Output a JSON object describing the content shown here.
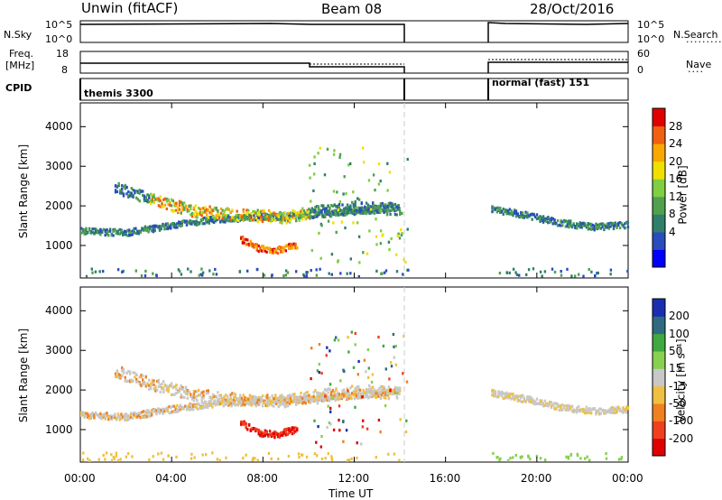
{
  "header": {
    "radar": "Unwin (fitACF)",
    "beam": "Beam 08",
    "date": "28/Oct/2016"
  },
  "sky_panel": {
    "ylabel": "N.Sky",
    "ticks_left": [
      "10^5",
      "10^0"
    ],
    "ticks_right": [
      "10^5",
      "10^0"
    ],
    "right_label": "N.Search"
  },
  "freq_panel": {
    "ylabel_line1": "Freq.",
    "ylabel_line2": "[MHz]",
    "ticks_left": [
      "18",
      "8"
    ],
    "ticks_right": [
      "60",
      "0"
    ],
    "right_label": "Nave"
  },
  "cpid_panel": {
    "label": "CPID",
    "segments": [
      {
        "name": "themis 3300"
      },
      {
        "name": "normal (fast) 151"
      }
    ]
  },
  "power_panel": {
    "ylabel": "Slant Range [km]",
    "yticks": [
      "4000",
      "3000",
      "2000",
      "1000"
    ],
    "colorbar_label": "Power [dB]",
    "colorbar_ticks": [
      "28",
      "24",
      "20",
      "16",
      "12",
      "8",
      "4"
    ],
    "colors": [
      "#0000ff",
      "#2a4dbd",
      "#2f7f6a",
      "#50a050",
      "#7fcf40",
      "#f0e000",
      "#f8a800",
      "#f06010",
      "#e00000"
    ]
  },
  "velocity_panel": {
    "ylabel": "Slant Range [km]",
    "yticks": [
      "4000",
      "3000",
      "2000",
      "1000"
    ],
    "colorbar_label": "Velocity [m s⁻¹]",
    "colorbar_ticks": [
      "200",
      "100",
      "50",
      "15",
      "-15",
      "-50",
      "-100",
      "-200"
    ],
    "colors": [
      "#1a2fb0",
      "#2e6b80",
      "#3fa840",
      "#88d050",
      "#c8c8c8",
      "#f0c040",
      "#f08020",
      "#f04020",
      "#e00000"
    ]
  },
  "xaxis": {
    "title": "Time UT",
    "ticks": [
      "00:00",
      "04:00",
      "08:00",
      "12:00",
      "16:00",
      "20:00",
      "00:00"
    ]
  },
  "chart_data": {
    "type": "heatmap",
    "x_unit": "hours UT",
    "xlim": [
      0,
      24
    ],
    "ylim_km": [
      180,
      4600
    ],
    "data_gap_hours": [
      14.33,
      18.0
    ],
    "cpid": [
      {
        "name": "themis 3300",
        "start": 0,
        "end": 14.33
      },
      {
        "name": "normal (fast) 151",
        "start": 18.0,
        "end": 24
      }
    ],
    "frequency_MHz": [
      {
        "start": 0,
        "end": 10,
        "value": 10.8
      },
      {
        "start": 10,
        "end": 14.33,
        "value": 10.0
      },
      {
        "start": 18,
        "end": 24,
        "value": 10.9
      }
    ],
    "echo_bands": [
      {
        "name": "ground scatter lower",
        "points": [
          [
            0,
            1400
          ],
          [
            2,
            1350
          ],
          [
            4,
            1550
          ],
          [
            6,
            1700
          ],
          [
            8,
            1750
          ],
          [
            10,
            1800
          ],
          [
            12,
            1900
          ],
          [
            14,
            2000
          ]
        ]
      },
      {
        "name": "ionospheric upper",
        "points": [
          [
            1.5,
            2500
          ],
          [
            3,
            2200
          ],
          [
            5,
            1900
          ],
          [
            7,
            1800
          ],
          [
            9,
            1750
          ],
          [
            10.5,
            1900
          ],
          [
            12,
            2000
          ],
          [
            14,
            1950
          ]
        ]
      },
      {
        "name": "strong near-range feature",
        "points": [
          [
            7,
            1200
          ],
          [
            7.8,
            950
          ],
          [
            8.5,
            900
          ],
          [
            9.5,
            1050
          ]
        ]
      },
      {
        "name": "late band",
        "points": [
          [
            18,
            1950
          ],
          [
            19.5,
            1800
          ],
          [
            21,
            1600
          ],
          [
            22.5,
            1500
          ],
          [
            24,
            1550
          ]
        ]
      }
    ],
    "power_dB_peak": 30,
    "velocity_extent_ms": [
      -200,
      200
    ]
  }
}
